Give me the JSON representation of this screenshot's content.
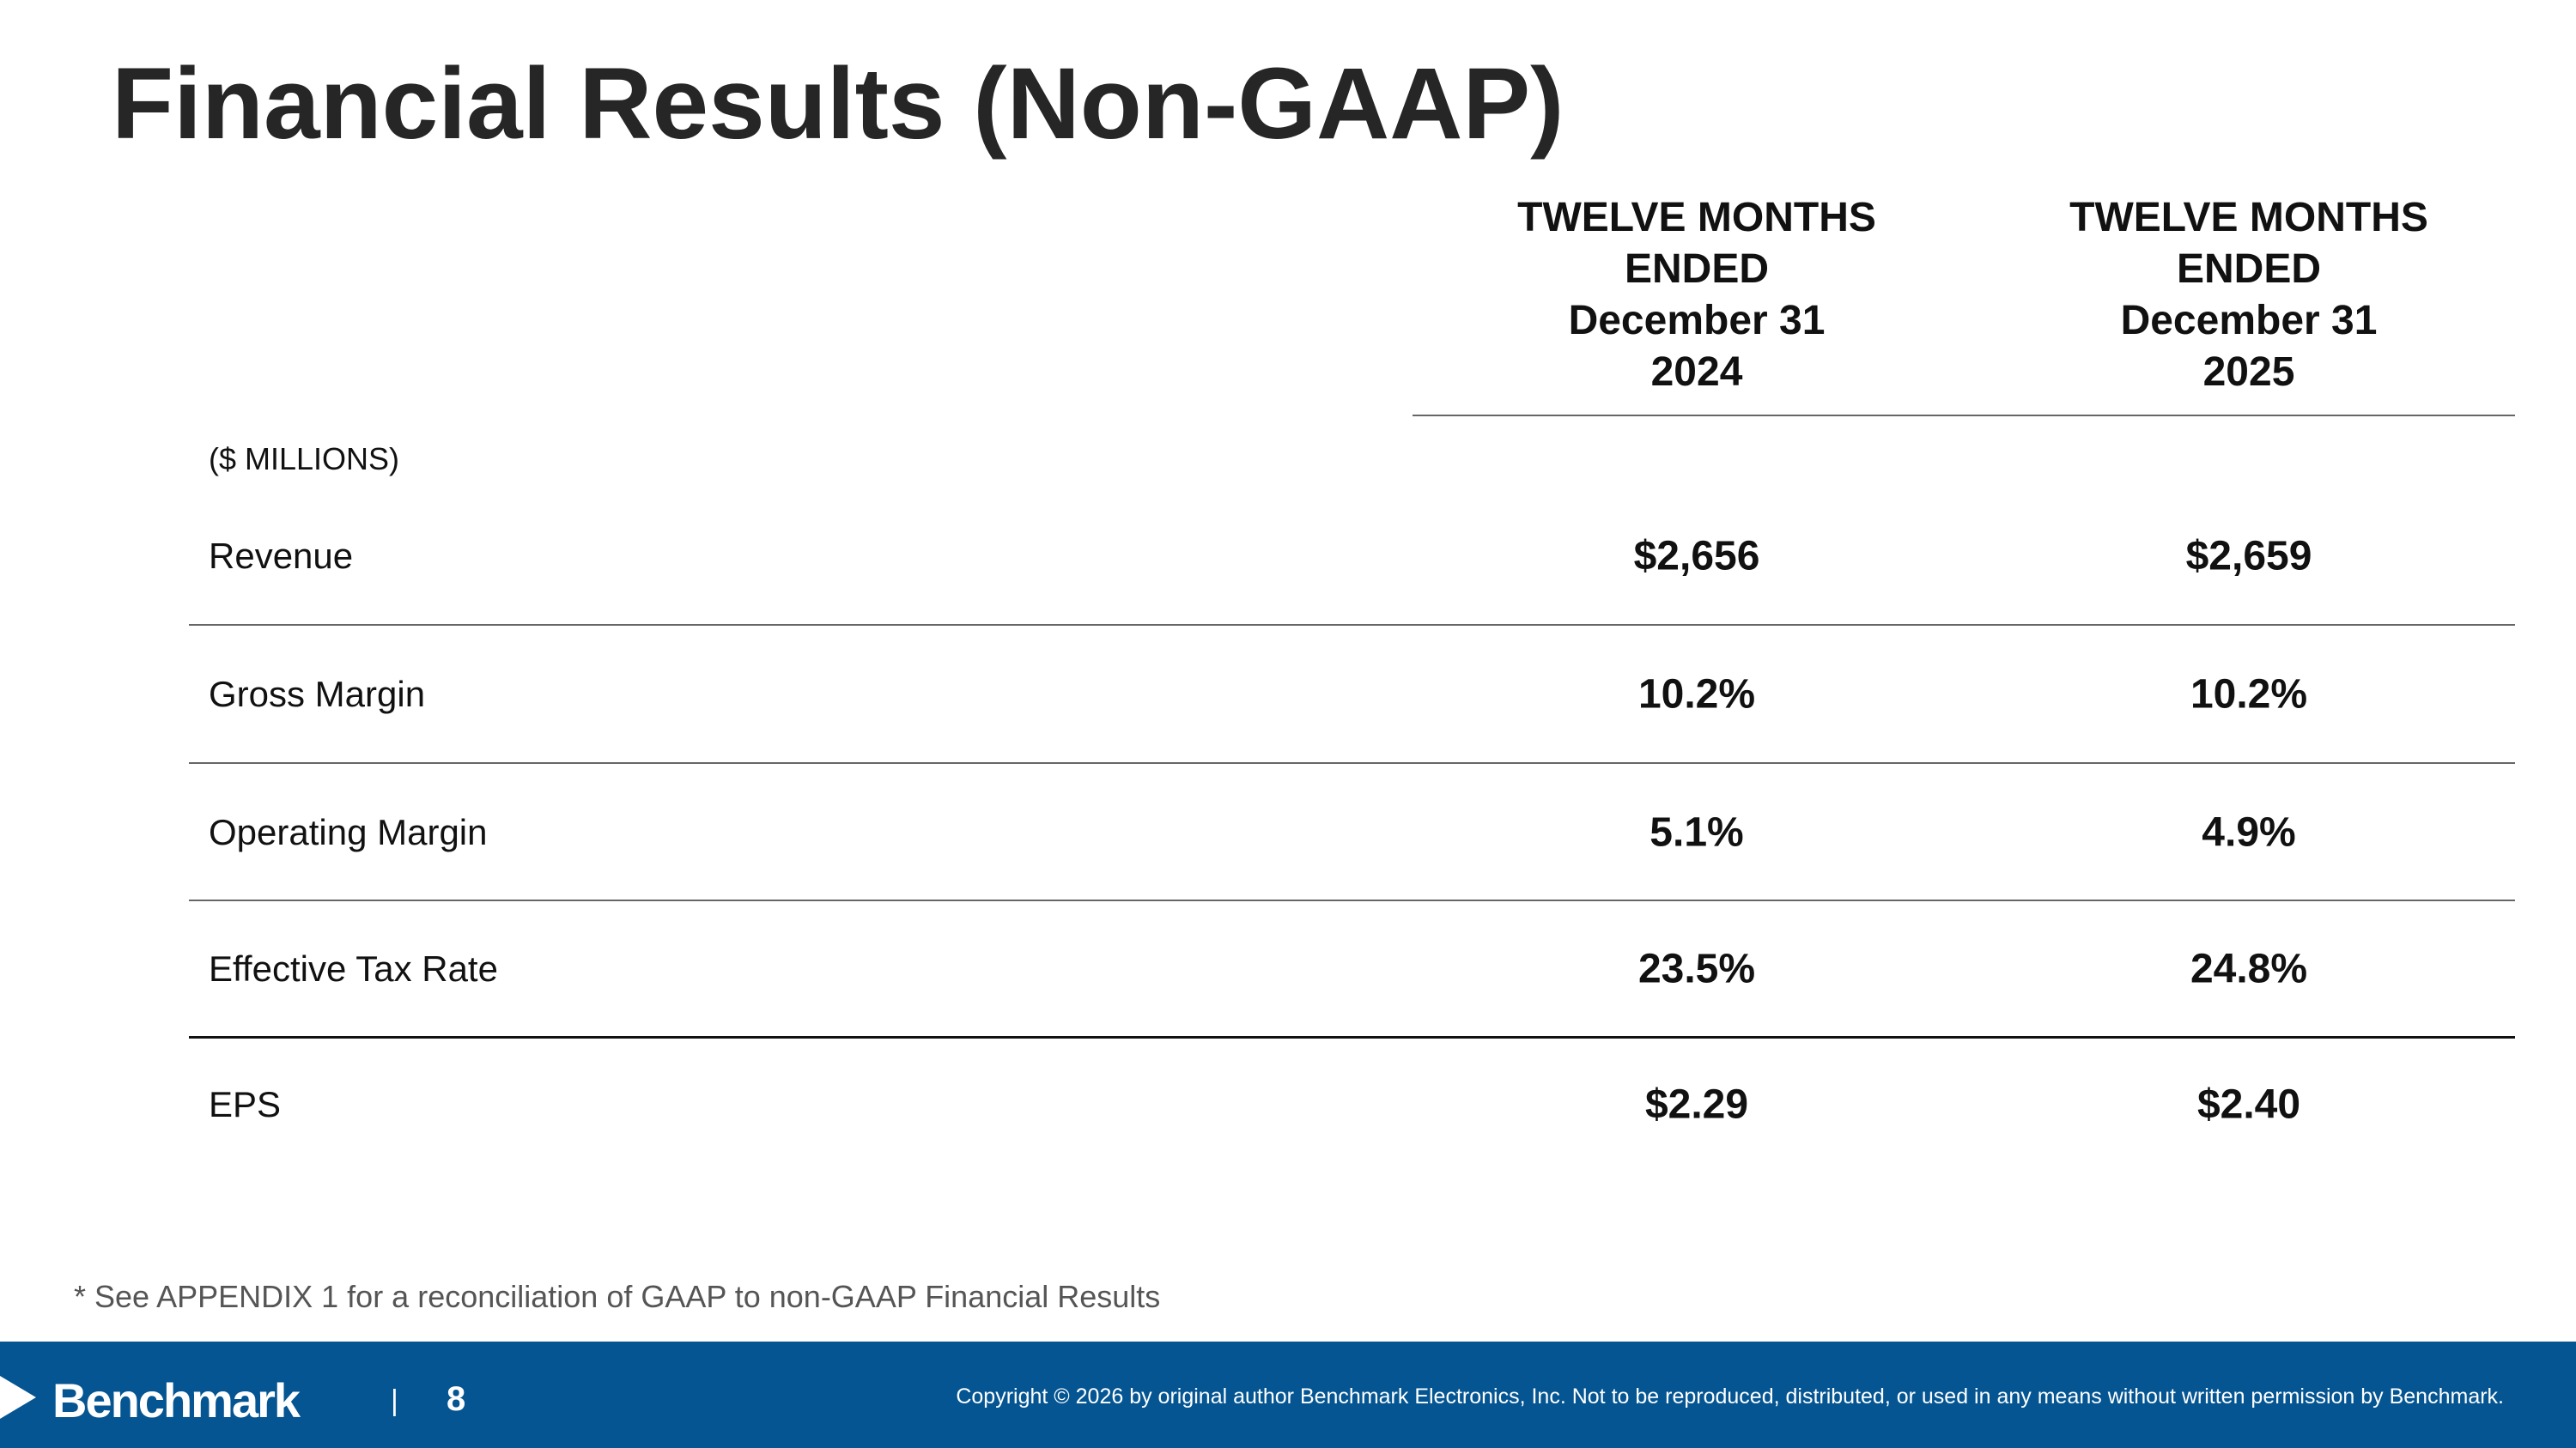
{
  "header": {
    "title": "Financial Results (Non-GAAP)"
  },
  "table": {
    "columns": [
      {
        "lines": [
          "TWELVE MONTHS",
          "ENDED",
          "December 31",
          "2024"
        ]
      },
      {
        "lines": [
          "TWELVE MONTHS",
          "ENDED",
          "December 31",
          "2025"
        ]
      }
    ],
    "units": "($ MILLIONS)",
    "rows": [
      [
        "Revenue",
        "$2,656",
        "$2,659"
      ],
      [
        "Gross Margin",
        "10.2%",
        "10.2%"
      ],
      [
        "Operating Margin",
        "5.1%",
        "4.9%"
      ],
      [
        "Effective Tax Rate",
        "23.5%",
        "24.8%"
      ],
      [
        "EPS",
        "$2.29",
        "$2.40"
      ]
    ]
  },
  "footnote": "* See APPENDIX 1 for a reconciliation of GAAP to non-GAAP Financial Results",
  "footer": {
    "logo": "Benchmark",
    "page": "8",
    "copyright": "Copyright © 2026 by original author Benchmark Electronics, Inc. Not to be reproduced, distributed, or used in any means without written permission by Benchmark."
  }
}
